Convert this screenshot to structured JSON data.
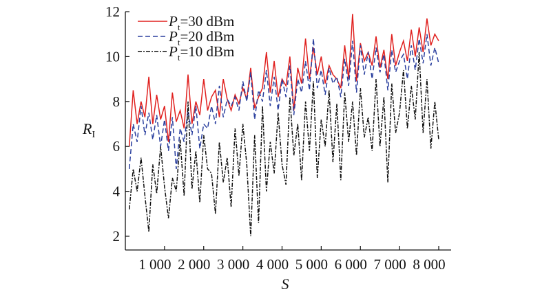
{
  "chart_data": {
    "type": "line",
    "title": "",
    "xlabel": "S",
    "ylabel_main": "R",
    "ylabel_sub": "I",
    "xlim": [
      0,
      8000
    ],
    "ylim": [
      1.4,
      12
    ],
    "xticks": [
      1000,
      2000,
      3000,
      4000,
      5000,
      6000,
      7000,
      8000
    ],
    "xtick_labels": [
      "1 000",
      "2 000",
      "3 000",
      "4 000",
      "5 000",
      "6 000",
      "7 000",
      "8 000"
    ],
    "yticks": [
      2,
      4,
      6,
      8,
      10,
      12
    ],
    "ytick_labels": [
      "2",
      "4",
      "6",
      "8",
      "10",
      "12"
    ],
    "legend_position": "top-left",
    "x_start": 100,
    "x_step": 100,
    "series": [
      {
        "name_main": "P",
        "name_sub": "t",
        "name_rest": "=30 dBm",
        "color": "#e0201e",
        "dash": "",
        "values": [
          6.0,
          8.5,
          7.0,
          8.0,
          7.3,
          9.1,
          7.0,
          8.3,
          7.2,
          7.8,
          6.2,
          8.4,
          7.1,
          7.6,
          6.8,
          9.2,
          7.0,
          8.0,
          7.4,
          9.0,
          7.6,
          8.2,
          8.5,
          7.3,
          9.0,
          8.1,
          7.6,
          8.3,
          7.9,
          8.6,
          8.1,
          9.5,
          7.7,
          8.2,
          8.6,
          10.2,
          8.4,
          9.8,
          8.2,
          9.0,
          8.7,
          10.0,
          7.6,
          9.5,
          8.8,
          10.8,
          9.0,
          10.4,
          9.2,
          10.0,
          8.8,
          9.6,
          9.2,
          9.0,
          8.6,
          10.5,
          9.0,
          11.9,
          8.9,
          10.6,
          9.8,
          10.2,
          9.6,
          10.9,
          9.5,
          10.3,
          9.0,
          11.0,
          9.6,
          10.2,
          10.7,
          9.8,
          11.2,
          10.0,
          11.3,
          10.2,
          11.7,
          10.5,
          11.0,
          10.7
        ]
      },
      {
        "name_main": "P",
        "name_sub": "t",
        "name_rest": "=20 dBm",
        "color": "#2a3f9e",
        "dash": "7,4",
        "values": [
          5.0,
          7.0,
          6.2,
          7.8,
          6.5,
          7.5,
          6.3,
          7.4,
          6.0,
          7.2,
          5.8,
          7.3,
          5.0,
          6.8,
          6.2,
          7.6,
          6.5,
          7.8,
          5.9,
          7.0,
          6.8,
          7.8,
          7.0,
          8.7,
          7.3,
          8.1,
          7.8,
          8.2,
          7.6,
          8.9,
          8.0,
          9.3,
          7.2,
          8.5,
          8.0,
          9.4,
          7.8,
          9.1,
          7.6,
          9.0,
          8.2,
          9.6,
          7.4,
          9.0,
          8.4,
          9.8,
          8.5,
          10.8,
          8.6,
          9.4,
          8.3,
          9.5,
          8.8,
          9.1,
          8.2,
          9.9,
          8.7,
          10.7,
          8.4,
          10.5,
          9.2,
          10.2,
          9.0,
          10.4,
          9.3,
          10.1,
          8.5,
          10.3,
          9.3,
          9.8,
          10.1,
          9.0,
          10.5,
          9.4,
          10.8,
          9.7,
          11.0,
          9.6,
          10.4,
          9.7
        ]
      },
      {
        "name_main": "P",
        "name_sub": "t",
        "name_rest": "=10 dBm",
        "color": "#111111",
        "dash": "6,2,2,2",
        "values": [
          3.2,
          5.0,
          4.0,
          5.5,
          3.8,
          2.2,
          5.2,
          3.9,
          6.0,
          4.2,
          2.8,
          4.6,
          4.0,
          6.3,
          3.8,
          8.0,
          4.1,
          5.8,
          3.5,
          6.5,
          5.0,
          4.8,
          3.0,
          6.2,
          4.4,
          5.5,
          3.3,
          6.8,
          4.7,
          7.0,
          5.2,
          2.0,
          6.5,
          2.6,
          7.8,
          4.0,
          6.2,
          4.8,
          7.5,
          5.2,
          4.3,
          8.2,
          5.6,
          7.0,
          4.5,
          8.0,
          5.8,
          8.9,
          4.6,
          7.2,
          6.0,
          8.5,
          5.3,
          7.9,
          4.5,
          8.4,
          6.2,
          8.0,
          5.6,
          8.6,
          6.4,
          7.3,
          5.8,
          9.0,
          6.0,
          8.2,
          4.4,
          8.8,
          6.6,
          7.5,
          9.4,
          6.8,
          8.7,
          7.2,
          10.2,
          6.6,
          9.0,
          5.9,
          8.0,
          6.3
        ]
      }
    ]
  }
}
